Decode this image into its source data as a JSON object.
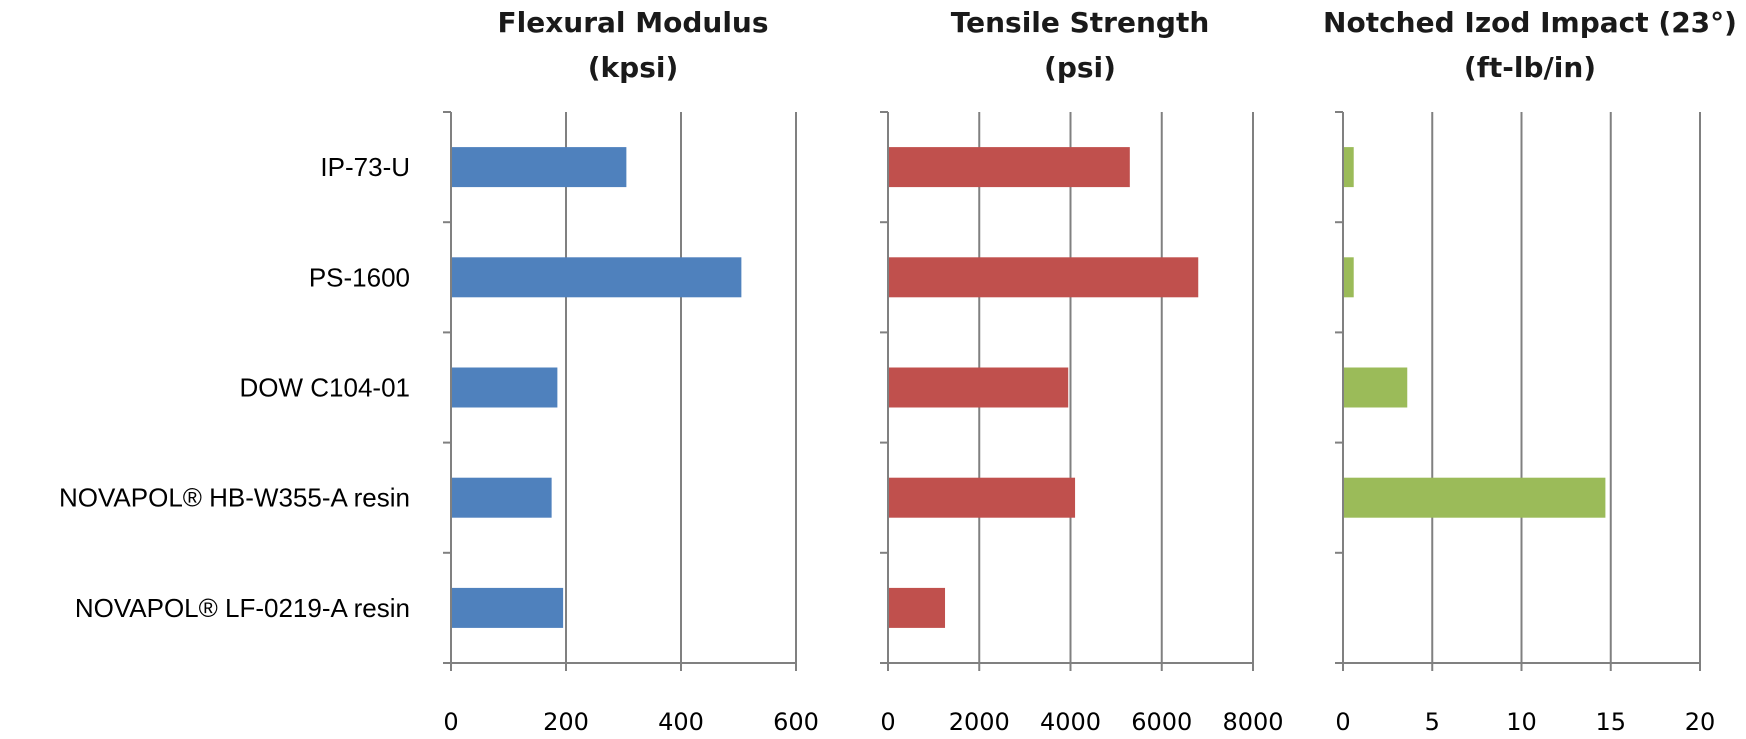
{
  "chart_data": {
    "type": "bar",
    "orientation": "horizontal",
    "categories": [
      "IP-73-U",
      "PS-1600",
      "DOW C104-01",
      "NOVAPOL® HB-W355-A resin",
      "NOVAPOL® LF-0219-A resin"
    ],
    "grid": true,
    "panels": [
      {
        "title_lines": [
          "Flexural Modulus",
          "(kpsi)"
        ],
        "color": "#4F81BD",
        "xlim": [
          0,
          600
        ],
        "ticks": [
          0,
          200,
          400,
          600
        ],
        "values": [
          305,
          505,
          185,
          175,
          195
        ]
      },
      {
        "title_lines": [
          "Tensile Strength",
          "(psi)"
        ],
        "color": "#C0504D",
        "xlim": [
          0,
          8000
        ],
        "ticks": [
          0,
          2000,
          4000,
          6000,
          8000
        ],
        "values": [
          5300,
          6800,
          3950,
          4100,
          1250
        ]
      },
      {
        "title_lines": [
          "Notched Izod Impact (23°)",
          "(ft-lb/in)"
        ],
        "color": "#9BBB59",
        "xlim": [
          0,
          20
        ],
        "ticks": [
          0,
          5,
          10,
          15,
          20
        ],
        "values": [
          0.6,
          0.6,
          3.6,
          14.7,
          0
        ]
      }
    ]
  }
}
